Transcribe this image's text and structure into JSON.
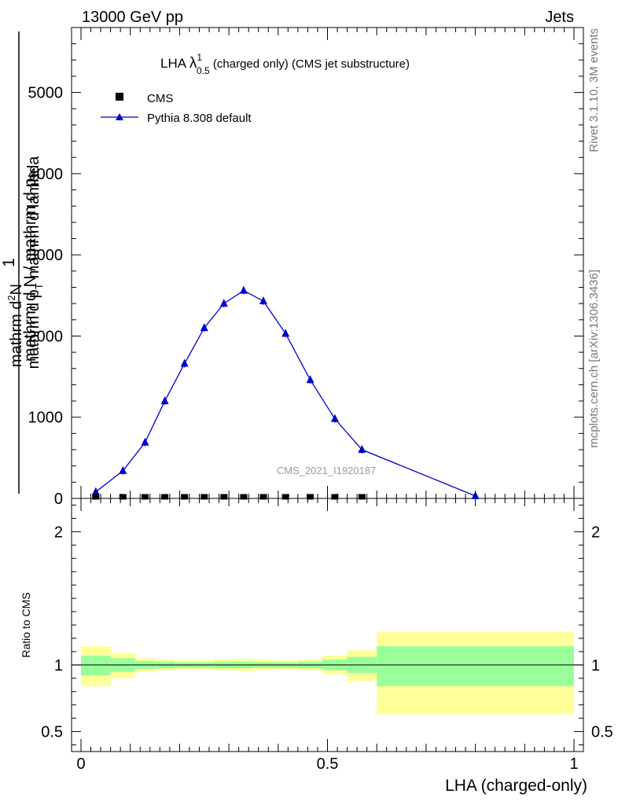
{
  "header": {
    "left": "13000 GeV pp",
    "right": "Jets"
  },
  "side_labels": {
    "rivet": "Rivet 3.1.10,  3M events",
    "mcplots": "mcplots.cern.ch [arXiv:1306.3436]"
  },
  "watermark": "CMS_2021_I1920187",
  "main_title": {
    "pre": "LHA ",
    "lambda": "λ",
    "sup": "1",
    "sub": "0.5",
    "post": " (charged only) (CMS jet substructure)"
  },
  "legend": {
    "placement": "top-left",
    "data_label": "CMS",
    "mc_label": "Pythia 8.308 default"
  },
  "y_axis_label": {
    "numerator": "1",
    "denominator": "mathrm d N / mathrm d p",
    "denominator_sub": "T",
    "line1": "mathrm d",
    "line1_sup": "2",
    "line1_tail": "N",
    "line2_a": "mathrm d p",
    "line2_sub": "T",
    "line2_b": "mathrm d lambda"
  },
  "ratio_axis_label": "Ratio to CMS",
  "x_axis_label": "LHA (charged-only)",
  "colors": {
    "mc_line": "#0000cc",
    "band_inner": "#99ff99",
    "band_outer": "#ffff99",
    "data_marker": "#000000"
  },
  "chart_data": {
    "type": "line",
    "main": {
      "xlim": [
        -0.02,
        1.0
      ],
      "ylim": [
        0,
        5800
      ],
      "y_ticks": [
        {
          "value": 0,
          "label": "0"
        },
        {
          "value": 1000,
          "label": "1000"
        },
        {
          "value": 2000,
          "label": "2000"
        },
        {
          "value": 3000,
          "label": "3000"
        },
        {
          "value": 4000,
          "label": "4000"
        },
        {
          "value": 5000,
          "label": "5000"
        }
      ],
      "series": [
        {
          "name": "CMS",
          "style": "square-marker",
          "x": [
            0.03,
            0.085,
            0.13,
            0.17,
            0.21,
            0.25,
            0.29,
            0.33,
            0.37,
            0.415,
            0.465,
            0.515,
            0.57
          ],
          "y": [
            5,
            5,
            5,
            5,
            5,
            5,
            5,
            5,
            5,
            5,
            5,
            5,
            5
          ]
        },
        {
          "name": "Pythia 8.308 default",
          "style": "line-triangle",
          "x": [
            0.03,
            0.085,
            0.13,
            0.17,
            0.21,
            0.25,
            0.29,
            0.33,
            0.37,
            0.415,
            0.465,
            0.515,
            0.57,
            0.8
          ],
          "y": [
            80,
            340,
            690,
            1200,
            1660,
            2100,
            2400,
            2560,
            2430,
            2030,
            1460,
            980,
            600,
            30
          ]
        }
      ]
    },
    "ratio": {
      "ylim": [
        0.35,
        2.25
      ],
      "ref_line": 1,
      "y_ticks": [
        {
          "value": 0.5,
          "label": "0.5"
        },
        {
          "value": 1,
          "label": "1"
        },
        {
          "value": 2,
          "label": "2"
        }
      ],
      "x_ticks": [
        {
          "value": 0,
          "label": "0"
        },
        {
          "value": 0.5,
          "label": "0.5"
        },
        {
          "value": 1,
          "label": "1"
        }
      ],
      "bins": [
        {
          "x0": 0.0,
          "x1": 0.06,
          "inner": [
            0.92,
            1.07
          ],
          "outer": [
            0.84,
            1.14
          ]
        },
        {
          "x0": 0.06,
          "x1": 0.11,
          "inner": [
            0.95,
            1.05
          ],
          "outer": [
            0.9,
            1.09
          ]
        },
        {
          "x0": 0.11,
          "x1": 0.15,
          "inner": [
            0.97,
            1.03
          ],
          "outer": [
            0.95,
            1.05
          ]
        },
        {
          "x0": 0.15,
          "x1": 0.19,
          "inner": [
            0.975,
            1.025
          ],
          "outer": [
            0.96,
            1.04
          ]
        },
        {
          "x0": 0.19,
          "x1": 0.23,
          "inner": [
            0.98,
            1.02
          ],
          "outer": [
            0.965,
            1.035
          ]
        },
        {
          "x0": 0.23,
          "x1": 0.27,
          "inner": [
            0.98,
            1.02
          ],
          "outer": [
            0.965,
            1.035
          ]
        },
        {
          "x0": 0.27,
          "x1": 0.31,
          "inner": [
            0.975,
            1.025
          ],
          "outer": [
            0.96,
            1.04
          ]
        },
        {
          "x0": 0.31,
          "x1": 0.35,
          "inner": [
            0.975,
            1.025
          ],
          "outer": [
            0.955,
            1.045
          ]
        },
        {
          "x0": 0.35,
          "x1": 0.39,
          "inner": [
            0.98,
            1.02
          ],
          "outer": [
            0.96,
            1.04
          ]
        },
        {
          "x0": 0.39,
          "x1": 0.44,
          "inner": [
            0.98,
            1.02
          ],
          "outer": [
            0.965,
            1.035
          ]
        },
        {
          "x0": 0.44,
          "x1": 0.49,
          "inner": [
            0.975,
            1.025
          ],
          "outer": [
            0.96,
            1.04
          ]
        },
        {
          "x0": 0.49,
          "x1": 0.54,
          "inner": [
            0.96,
            1.04
          ],
          "outer": [
            0.93,
            1.07
          ]
        },
        {
          "x0": 0.54,
          "x1": 0.6,
          "inner": [
            0.94,
            1.06
          ],
          "outer": [
            0.88,
            1.11
          ]
        },
        {
          "x0": 0.6,
          "x1": 1.0,
          "inner": [
            0.84,
            1.14
          ],
          "outer": [
            0.63,
            1.25
          ]
        }
      ]
    }
  }
}
